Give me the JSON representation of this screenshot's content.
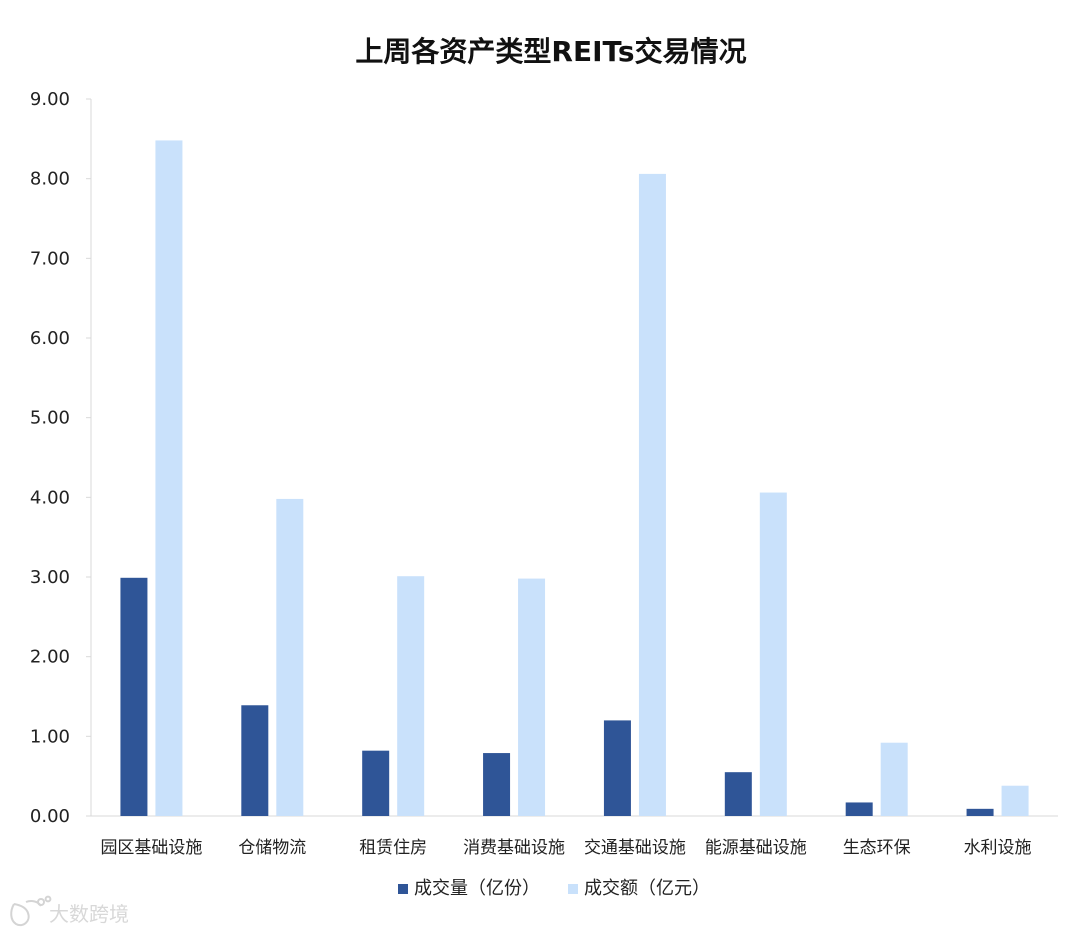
{
  "chart_data": {
    "type": "bar",
    "title": "上周各资产类型REITs交易情况",
    "categories": [
      "园区基础设施",
      "仓储物流",
      "租赁住房",
      "消费基础设施",
      "交通基础设施",
      "能源基础设施",
      "生态环保",
      "水利设施"
    ],
    "series": [
      {
        "name": "成交量（亿份）",
        "color": "#2f5597",
        "values": [
          2.99,
          1.39,
          0.82,
          0.79,
          1.2,
          0.55,
          0.17,
          0.09
        ]
      },
      {
        "name": "成交额（亿元）",
        "color": "#c9e1fb",
        "values": [
          8.48,
          3.98,
          3.01,
          2.98,
          8.06,
          4.06,
          0.92,
          0.38
        ]
      }
    ],
    "ylim": [
      0,
      9
    ],
    "yticks": [
      "0.00",
      "1.00",
      "2.00",
      "3.00",
      "4.00",
      "5.00",
      "6.00",
      "7.00",
      "8.00",
      "9.00"
    ],
    "grid": false,
    "legend": "bottom-center",
    "xlabel": "",
    "ylabel": ""
  },
  "watermark": {
    "text": "大数跨境"
  }
}
